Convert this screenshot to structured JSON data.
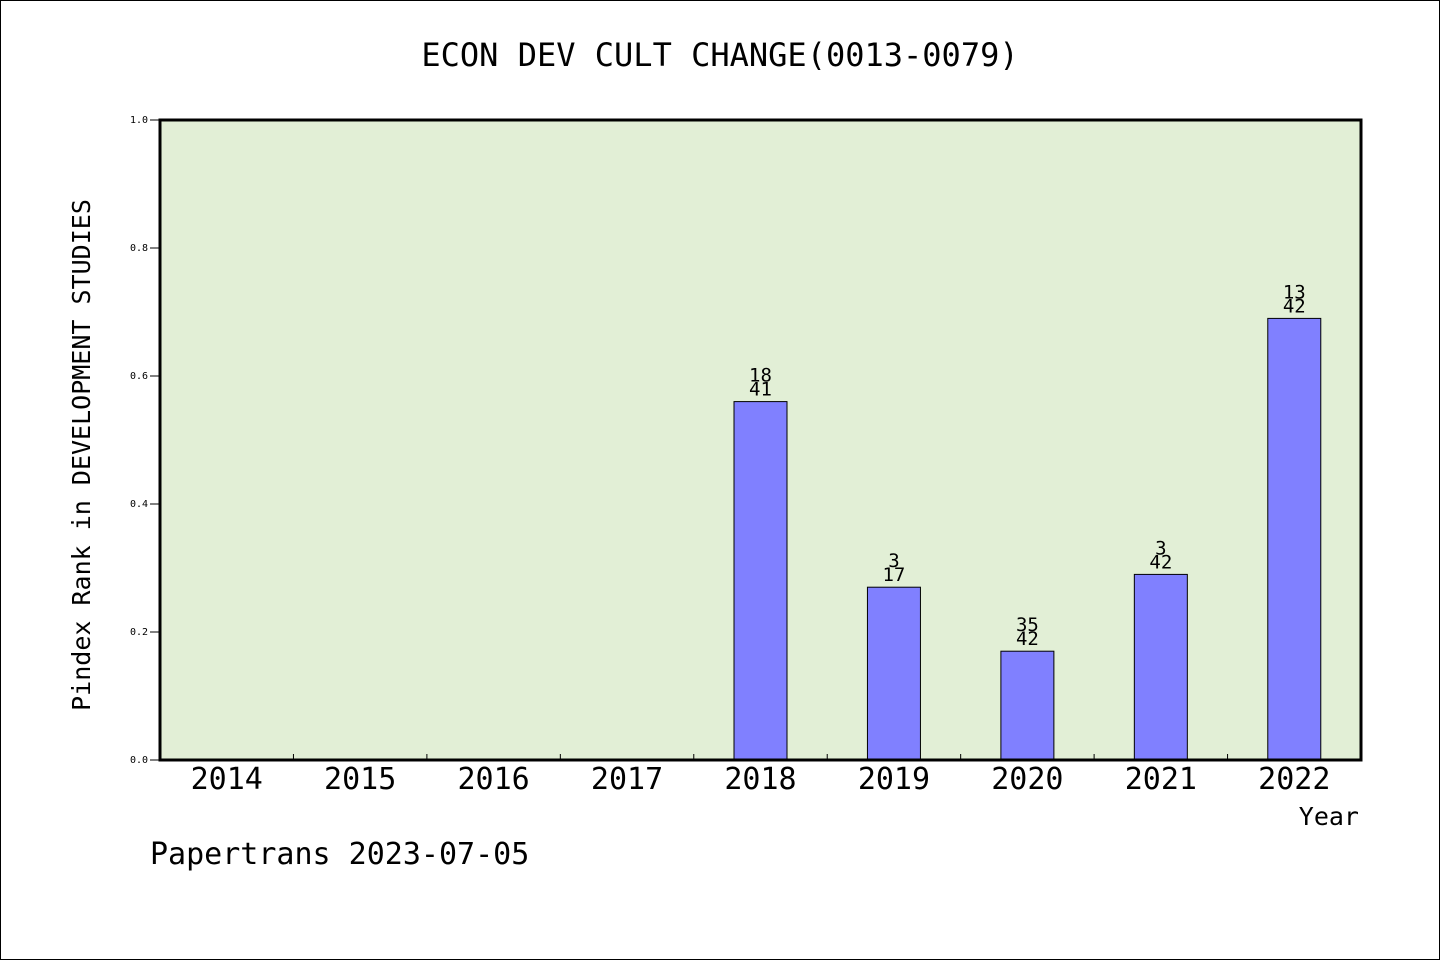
{
  "footer": "Papertrans 2023-07-05",
  "colors": {
    "plot_bg": "#e2efd6",
    "bar_fill": "#8080ff",
    "bar_stroke": "#000000"
  },
  "chart_data": {
    "type": "bar",
    "title": "ECON DEV CULT CHANGE(0013-0079)",
    "xlabel": "Year",
    "ylabel": "Pindex Rank in DEVELOPMENT STUDIES",
    "ylim": [
      0,
      1.0
    ],
    "yticks": [
      "0.0",
      "0.2",
      "0.4",
      "0.6",
      "0.8",
      "1.0"
    ],
    "grid": false,
    "categories": [
      "2014",
      "2015",
      "2016",
      "2017",
      "2018",
      "2019",
      "2020",
      "2021",
      "2022"
    ],
    "values": [
      null,
      null,
      null,
      null,
      0.56,
      0.27,
      0.17,
      0.29,
      0.69
    ],
    "label_top": [
      null,
      null,
      null,
      null,
      "18",
      "3",
      "35",
      "3",
      "13"
    ],
    "label_bottom": [
      null,
      null,
      null,
      null,
      "41",
      "17",
      "42",
      "42",
      "42"
    ]
  }
}
